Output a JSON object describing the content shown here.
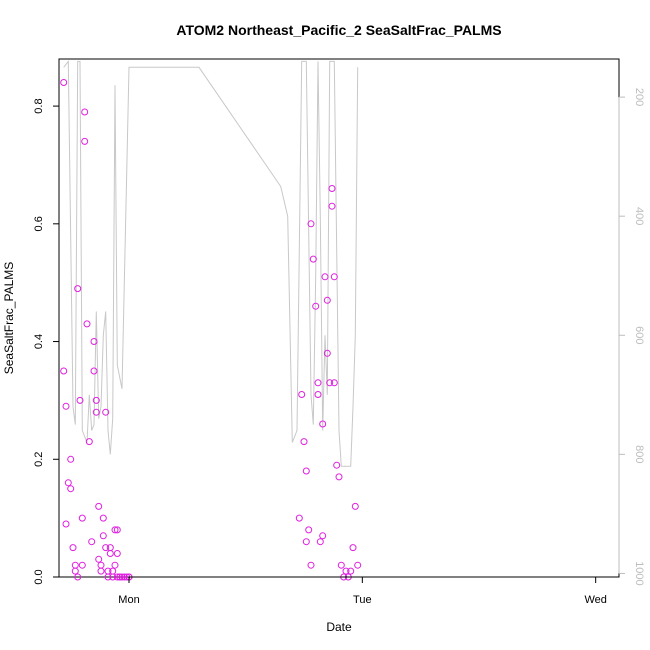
{
  "chart_data": {
    "type": "scatter",
    "title": "ATOM2 Northeast_Pacific_2 SeaSaltFrac_PALMS",
    "xlabel": "Date",
    "ylabel": "SeaSaltFrac_PALMS",
    "x_tick_labels": [
      "Mon",
      "Tue",
      "Wed"
    ],
    "x_tick_positions": [
      1.0,
      2.0,
      3.0
    ],
    "xlim": [
      0.7,
      3.1
    ],
    "ylim": [
      0.0,
      0.88
    ],
    "y_ticks": [
      0.0,
      0.2,
      0.4,
      0.6,
      0.8
    ],
    "y_tick_labels": [
      "0.0",
      "0.2",
      "0.4",
      "0.6",
      "0.8"
    ],
    "y2_ticks": [
      200,
      400,
      600,
      800,
      1000
    ],
    "y2_tick_labels": [
      "200",
      "400",
      "600",
      "800",
      "1000"
    ],
    "y2_lim": [
      1006,
      136
    ],
    "y2_reversed": true,
    "grid": false,
    "colors": {
      "points": "#e020e0",
      "line": "#c8c8c8",
      "axis": "#000000",
      "y2_axis": "#bdbdbd"
    },
    "series": [
      {
        "type": "scatter",
        "x": [
          0.72,
          0.72,
          0.73,
          0.73,
          0.74,
          0.75,
          0.75,
          0.76,
          0.77,
          0.77,
          0.78,
          0.78,
          0.79,
          0.8,
          0.8,
          0.81,
          0.81,
          0.82,
          0.83,
          0.84,
          0.85,
          0.85,
          0.86,
          0.86,
          0.87,
          0.87,
          0.88,
          0.88,
          0.89,
          0.89,
          0.9,
          0.9,
          0.91,
          0.91,
          0.92,
          0.92,
          0.93,
          0.93,
          0.94,
          0.94,
          0.95,
          0.95,
          0.95,
          0.96,
          0.96,
          0.97,
          0.98,
          0.99,
          1.0,
          1.0,
          1.73,
          1.74,
          1.75,
          1.76,
          1.76,
          1.77,
          1.78,
          1.78,
          1.79,
          1.8,
          1.81,
          1.81,
          1.82,
          1.83,
          1.83,
          1.84,
          1.85,
          1.85,
          1.86,
          1.87,
          1.87,
          1.88,
          1.88,
          1.89,
          1.9,
          1.91,
          1.92,
          1.93,
          1.94,
          1.95,
          1.96,
          1.97,
          1.98
        ],
        "y": [
          0.84,
          0.35,
          0.29,
          0.09,
          0.16,
          0.2,
          0.15,
          0.05,
          0.02,
          0.01,
          0.0,
          0.49,
          0.3,
          0.1,
          0.02,
          0.79,
          0.74,
          0.43,
          0.23,
          0.06,
          0.35,
          0.4,
          0.28,
          0.3,
          0.12,
          0.03,
          0.01,
          0.02,
          0.1,
          0.07,
          0.28,
          0.05,
          0.0,
          0.01,
          0.04,
          0.05,
          0.0,
          0.01,
          0.02,
          0.08,
          0.0,
          0.08,
          0.04,
          0.0,
          0.0,
          0.0,
          0.0,
          0.0,
          0.0,
          0.0,
          0.1,
          0.31,
          0.23,
          0.18,
          0.06,
          0.08,
          0.02,
          0.6,
          0.54,
          0.46,
          0.33,
          0.31,
          0.06,
          0.07,
          0.26,
          0.51,
          0.47,
          0.38,
          0.33,
          0.66,
          0.63,
          0.51,
          0.33,
          0.19,
          0.17,
          0.02,
          0.0,
          0.01,
          0.0,
          0.01,
          0.05,
          0.12,
          0.02
        ],
        "color": "#e020e0"
      },
      {
        "type": "line",
        "axis": "y2",
        "x": [
          0.72,
          0.74,
          0.76,
          0.77,
          0.78,
          0.79,
          0.8,
          0.82,
          0.83,
          0.84,
          0.85,
          0.86,
          0.87,
          0.88,
          0.89,
          0.9,
          0.91,
          0.92,
          0.93,
          0.94,
          0.95,
          0.97,
          1.0,
          1.3,
          1.65,
          1.68,
          1.7,
          1.72,
          1.74,
          1.76,
          1.78,
          1.79,
          1.8,
          1.81,
          1.82,
          1.83,
          1.84,
          1.85,
          1.86,
          1.88,
          1.9,
          1.91,
          1.93,
          1.95,
          1.96,
          1.97,
          1.98
        ],
        "y": [
          150,
          140,
          720,
          750,
          140,
          140,
          760,
          780,
          700,
          760,
          750,
          560,
          740,
          720,
          600,
          560,
          760,
          800,
          740,
          180,
          650,
          690,
          150,
          150,
          350,
          400,
          780,
          760,
          140,
          140,
          700,
          750,
          500,
          140,
          400,
          760,
          600,
          700,
          140,
          140,
          760,
          820,
          820,
          820,
          720,
          600,
          150
        ],
        "color": "#c8c8c8"
      }
    ]
  }
}
